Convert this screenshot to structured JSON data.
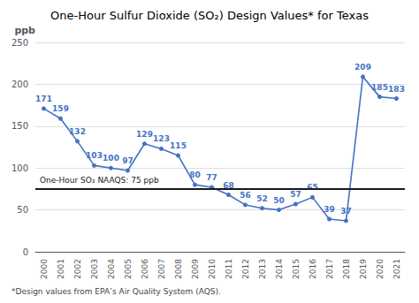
{
  "chart_data": {
    "type": "line",
    "title": "One-Hour Sulfur Dioxide (SO₂) Design Values* for Texas",
    "categories": [
      "2000",
      "2001",
      "2002",
      "2003",
      "2004",
      "2005",
      "2006",
      "2007",
      "2008",
      "2009",
      "2010",
      "2011",
      "2012",
      "2013",
      "2014",
      "2015",
      "2016",
      "2017",
      "2018",
      "2019",
      "2020",
      "2021"
    ],
    "values": [
      171,
      159,
      132,
      103,
      100,
      97,
      129,
      123,
      115,
      80,
      77,
      68,
      56,
      52,
      50,
      57,
      65,
      39,
      37,
      209,
      185,
      183
    ],
    "color": "#4472C4",
    "marker": "circle",
    "data_labels": true,
    "ylabel": "ppb",
    "ylim": [
      0,
      250
    ],
    "yticks": [
      0,
      50,
      100,
      150,
      200,
      250
    ],
    "grid": true,
    "hline": {
      "value": 75,
      "label": "One-Hour SO₂ NAAQS: 75 ppb",
      "color": "#1a1a1a"
    },
    "footnote": "*Design values from EPA’s Air Quality System (AQS)."
  }
}
